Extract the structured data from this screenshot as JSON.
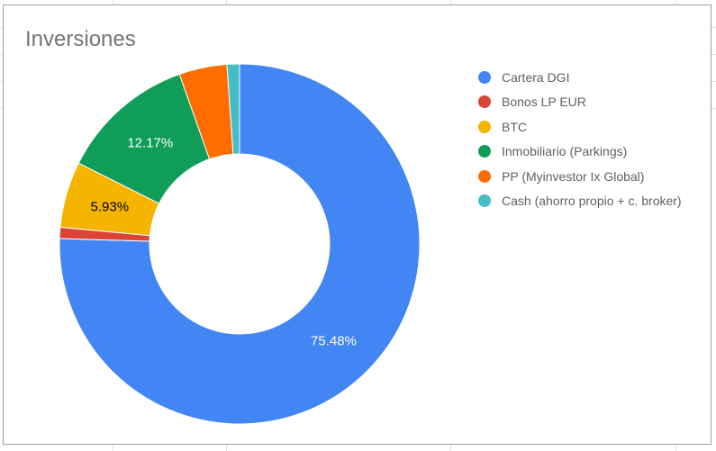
{
  "chart_data": {
    "type": "pie",
    "variant": "donut",
    "title": "Inversiones",
    "legend_position": "right",
    "series": [
      {
        "name": "Cartera DGI",
        "value": 75.48,
        "label": "75.48%",
        "color": "#4285f4"
      },
      {
        "name": "Bonos LP EUR",
        "value": 1.0,
        "label": "",
        "color": "#db4437"
      },
      {
        "name": "BTC",
        "value": 5.93,
        "label": "5.93%",
        "color": "#f4b400"
      },
      {
        "name": "Inmobiliario (Parkings)",
        "value": 12.17,
        "label": "12.17%",
        "color": "#0f9d58"
      },
      {
        "name": "PP (Myinvestor Ix Global)",
        "value": 4.3,
        "label": "",
        "color": "#ff6d00"
      },
      {
        "name": "Cash (ahorro propio + c. broker)",
        "value": 1.12,
        "label": "",
        "color": "#46bdc6"
      }
    ]
  }
}
